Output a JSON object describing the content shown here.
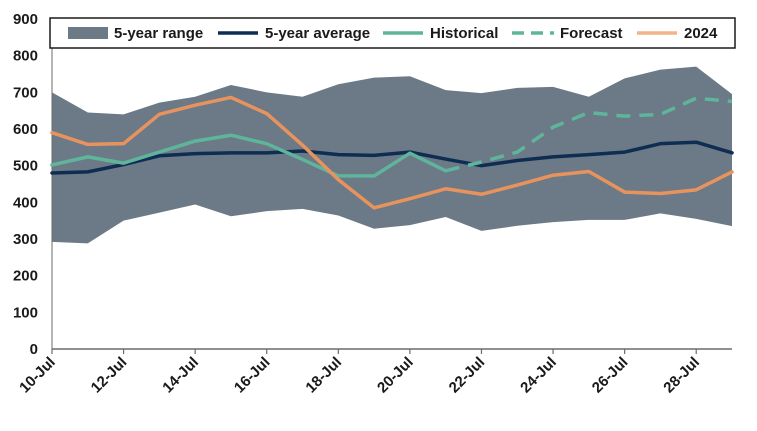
{
  "chart_data": {
    "type": "line",
    "title": "",
    "xlabel": "",
    "ylabel": "",
    "ylim": [
      0,
      900
    ],
    "y_ticks": [
      0,
      100,
      200,
      300,
      400,
      500,
      600,
      700,
      800,
      900
    ],
    "x": [
      10,
      11,
      12,
      13,
      14,
      15,
      16,
      17,
      18,
      19,
      20,
      21,
      22,
      23,
      24,
      25,
      26,
      27,
      28,
      29
    ],
    "xlim": [
      10,
      29
    ],
    "x_tick_labels": [
      "10-Jul",
      "12-Jul",
      "14-Jul",
      "16-Jul",
      "18-Jul",
      "20-Jul",
      "22-Jul",
      "24-Jul",
      "26-Jul",
      "28-Jul"
    ],
    "x_tick_positions": [
      10,
      12,
      14,
      16,
      18,
      20,
      22,
      24,
      26,
      28
    ],
    "legend": {
      "placement": "top",
      "entries": [
        "5-year range",
        "5-year average",
        "Historical",
        "Forecast",
        "2024"
      ]
    },
    "colors": {
      "range": "#6b7a86",
      "average": "#0f2d52",
      "historical": "#5fb59c",
      "forecast": "#5fb59c",
      "y2024": "#e8935e"
    },
    "range": {
      "name": "5-year range",
      "upper": [
        700,
        645,
        640,
        672,
        688,
        720,
        700,
        688,
        722,
        740,
        744,
        706,
        698,
        712,
        715,
        688,
        738,
        762,
        770,
        695
      ],
      "lower": [
        292,
        288,
        350,
        372,
        394,
        362,
        376,
        382,
        364,
        328,
        338,
        360,
        322,
        336,
        346,
        352,
        352,
        370,
        355,
        335
      ]
    },
    "series": [
      {
        "name": "5-year average",
        "x": [
          10,
          11,
          12,
          13,
          14,
          15,
          16,
          17,
          18,
          19,
          20,
          21,
          22,
          23,
          24,
          25,
          26,
          27,
          28,
          29
        ],
        "values": [
          480,
          483,
          503,
          527,
          533,
          535,
          535,
          540,
          530,
          528,
          537,
          518,
          500,
          514,
          524,
          530,
          537,
          560,
          564,
          535
        ]
      },
      {
        "name": "Historical",
        "x": [
          10,
          11,
          12,
          13,
          14,
          15,
          16,
          17,
          18,
          19,
          20,
          21
        ],
        "values": [
          502,
          524,
          507,
          537,
          567,
          583,
          560,
          517,
          472,
          472,
          534,
          486
        ]
      },
      {
        "name": "Forecast",
        "x": [
          21,
          22,
          23,
          24,
          25,
          26,
          27,
          28,
          29
        ],
        "values": [
          486,
          510,
          537,
          605,
          645,
          635,
          640,
          684,
          675
        ]
      },
      {
        "name": "2024",
        "x": [
          10,
          11,
          12,
          13,
          14,
          15,
          16,
          17,
          18,
          19,
          20,
          21,
          22,
          23,
          24,
          25,
          26,
          27,
          28,
          29
        ],
        "values": [
          590,
          558,
          560,
          640,
          665,
          686,
          642,
          556,
          462,
          385,
          410,
          437,
          422,
          447,
          474,
          484,
          428,
          424,
          434,
          483
        ]
      }
    ]
  }
}
